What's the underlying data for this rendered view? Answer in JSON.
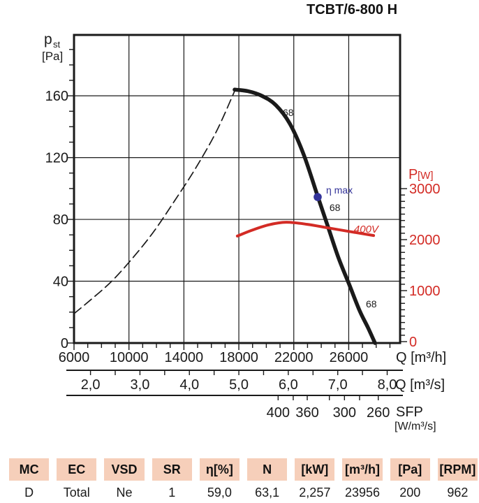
{
  "chart_data": {
    "type": "line",
    "title": "TCBT/6-800 H",
    "x_axis": {
      "label": "Q [m³/h]",
      "ticks": [
        6000,
        10000,
        14000,
        18000,
        22000,
        26000
      ],
      "range": [
        6000,
        29740
      ],
      "minor_step": 1000
    },
    "x_axis_m3s": {
      "label": "Q [m³/s]",
      "tick_labels": [
        "2,0",
        "3,0",
        "4,0",
        "5,0",
        "6,0",
        "7,0",
        "8,0"
      ],
      "tick_values_m3s": [
        2,
        3,
        4,
        5,
        6,
        7,
        8
      ],
      "minor_step_m3s": 0.5
    },
    "sfp_axis": {
      "label": "SFP",
      "unit_label": "[W/m³/s]",
      "ticks": [
        {
          "label": "400",
          "q_m3h": 20860
        },
        {
          "label": "",
          "q_m3h": 21960
        },
        {
          "label": "360",
          "q_m3h": 22980
        },
        {
          "label": "",
          "q_m3h": 24590
        },
        {
          "label": "300",
          "q_m3h": 25690
        },
        {
          "label": "",
          "q_m3h": 26790
        },
        {
          "label": "260",
          "q_m3h": 28150
        }
      ]
    },
    "y_left_axis": {
      "label_main": "p",
      "label_sub": "st",
      "label_unit": "[Pa]",
      "ticks": [
        0,
        40,
        80,
        120,
        160
      ],
      "range": [
        0,
        199.4
      ],
      "minor_step": 10
    },
    "y_right_axis": {
      "label_main": "P",
      "label_unit": "[W]",
      "ticks": [
        0,
        1000,
        2000,
        3000
      ],
      "color": "#d32b25"
    },
    "grid": true,
    "series": [
      {
        "name": "system-curve",
        "style": "dashed",
        "color": "#1a1a1a",
        "points_q_pa": [
          [
            6000,
            19
          ],
          [
            7220,
            28
          ],
          [
            8745,
            40
          ],
          [
            10270,
            55
          ],
          [
            11795,
            72
          ],
          [
            13320,
            92
          ],
          [
            14845,
            113
          ],
          [
            16370,
            137
          ],
          [
            17690,
            163
          ]
        ]
      },
      {
        "name": "fan-curve",
        "label": "68",
        "style": "solid",
        "color": "#1a1a1a",
        "points_q_pa": [
          [
            17690,
            164
          ],
          [
            18660,
            163
          ],
          [
            19670,
            160
          ],
          [
            20690,
            154
          ],
          [
            21710,
            142
          ],
          [
            22720,
            122
          ],
          [
            23740,
            95
          ],
          [
            24500,
            75
          ],
          [
            25260,
            55
          ],
          [
            26030,
            38
          ],
          [
            26790,
            21
          ],
          [
            27400,
            10
          ],
          [
            27910,
            0
          ]
        ]
      },
      {
        "name": "power-curve",
        "label": "400V",
        "style": "solid",
        "color": "#d32b25",
        "points_q_w": [
          [
            17890,
            2070
          ],
          [
            18910,
            2180
          ],
          [
            20180,
            2290
          ],
          [
            21450,
            2340
          ],
          [
            22980,
            2300
          ],
          [
            24500,
            2230
          ],
          [
            26030,
            2160
          ],
          [
            27810,
            2080
          ]
        ]
      }
    ],
    "eta_max_point": {
      "label": "η max",
      "dot_q_m3h": 23740,
      "dot_pa": 94.5,
      "label_q_m3h": 24350,
      "label_pa": 96.7,
      "color": "#333399"
    },
    "annotations": [
      {
        "text": "68",
        "q_m3h": 21200,
        "pa": 147,
        "color": "#1a1a1a",
        "italic": false,
        "size": 14
      },
      {
        "text": "68",
        "q_m3h": 24600,
        "pa": 85.4,
        "color": "#1a1a1a",
        "italic": false,
        "size": 14
      },
      {
        "text": "68",
        "q_m3h": 27250,
        "pa": 23.1,
        "color": "#1a1a1a",
        "italic": false,
        "size": 14
      },
      {
        "text": "400V",
        "q_m3h": 26380,
        "pa": 71.4,
        "color": "#d32b25",
        "italic": true,
        "size": 15
      }
    ]
  },
  "table": {
    "header_bg": "#f6cfba",
    "headers": [
      "MC",
      "EC",
      "VSD",
      "SR",
      "η[%]",
      "N",
      "[kW]",
      "[m³/h]",
      "[Pa]",
      "[RPM]"
    ],
    "values": [
      "D",
      "Total",
      "Ne",
      "1",
      "59,0",
      "63,1",
      "2,257",
      "23956",
      "200",
      "962"
    ]
  }
}
